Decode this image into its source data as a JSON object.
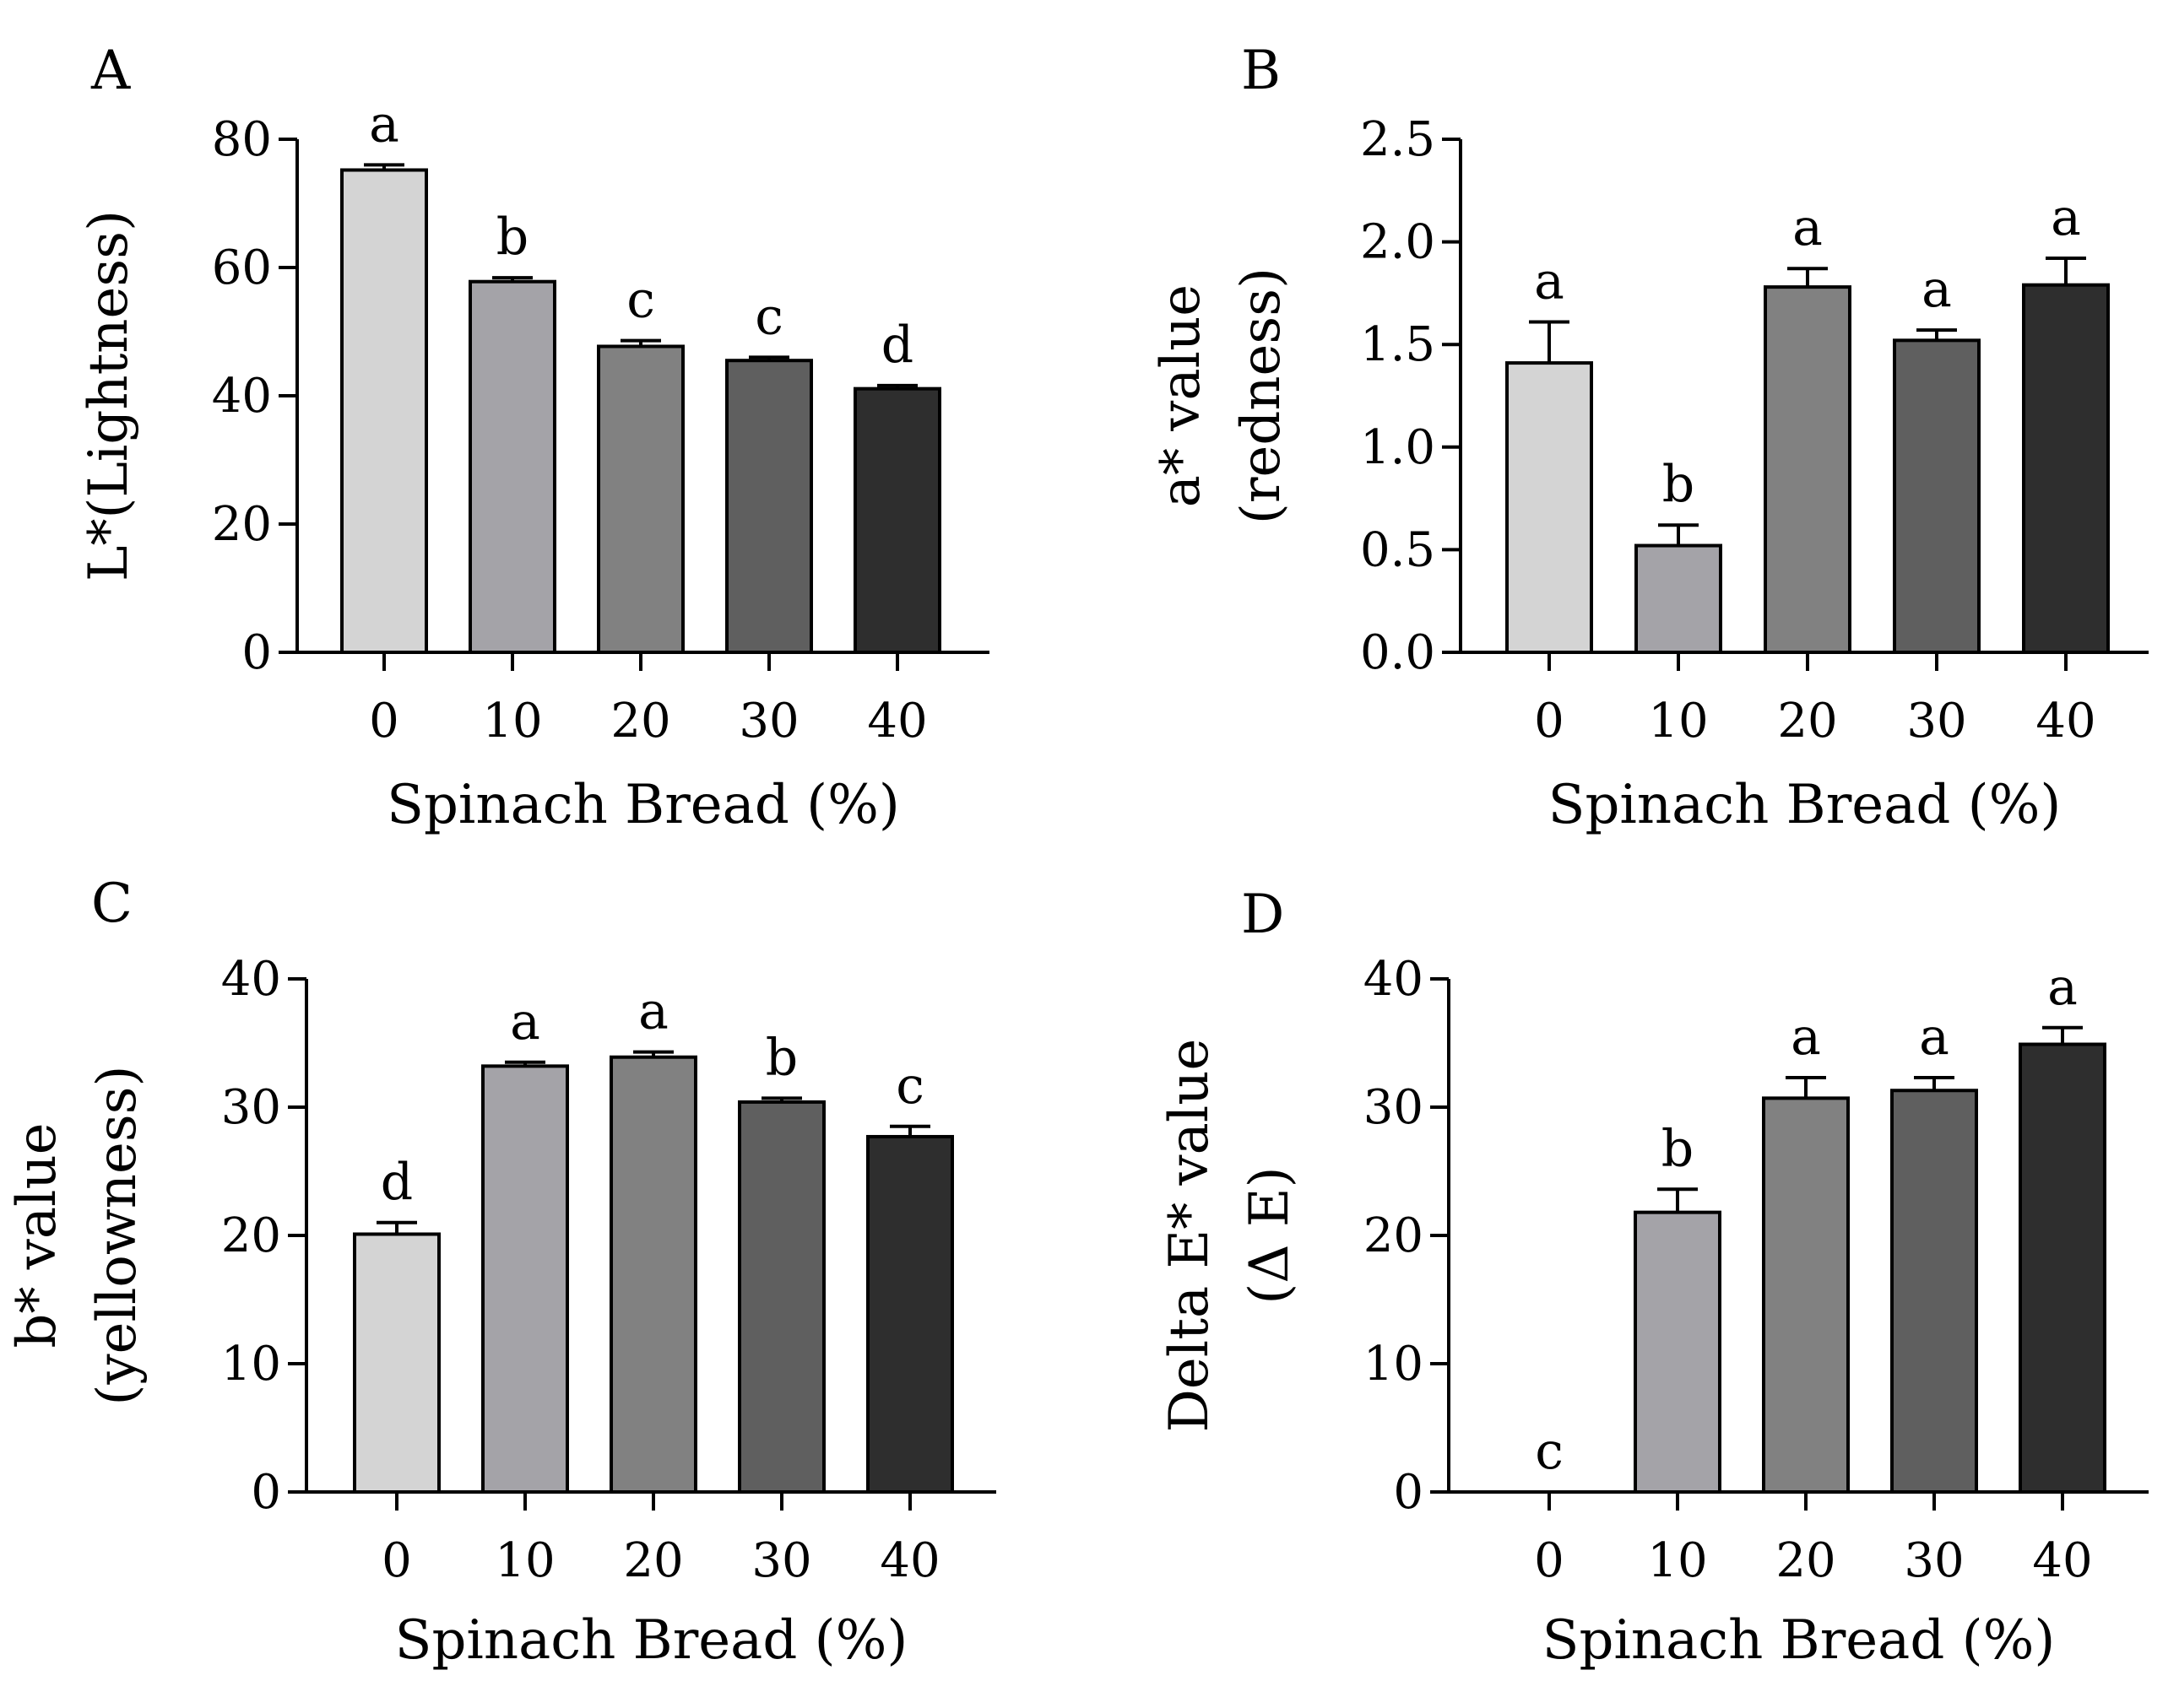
{
  "figure": {
    "bar_colors": [
      "#d4d4d4",
      "#a4a3a8",
      "#818181",
      "#5f5f5f",
      "#2e2e2e"
    ]
  },
  "chart_data": [
    {
      "panel": "A",
      "type": "bar",
      "categories": [
        "0",
        "10",
        "20",
        "30",
        "40"
      ],
      "values": [
        75.2,
        57.8,
        47.7,
        45.5,
        41.1
      ],
      "errors": [
        0.8,
        0.6,
        0.9,
        0.5,
        0.5
      ],
      "significance": [
        "a",
        "b",
        "c",
        "c",
        "d"
      ],
      "xlabel": "Spinach Bread (%)",
      "ylabel": [
        "L*(Lightness)"
      ],
      "ylim": [
        0,
        80
      ],
      "yticks": [
        0,
        20,
        40,
        60,
        80
      ],
      "ytick_labels": [
        "0",
        "20",
        "40",
        "60",
        "80"
      ]
    },
    {
      "panel": "B",
      "type": "bar",
      "categories": [
        "0",
        "10",
        "20",
        "30",
        "40"
      ],
      "values": [
        1.41,
        0.52,
        1.78,
        1.52,
        1.79
      ],
      "errors": [
        0.2,
        0.1,
        0.09,
        0.05,
        0.13
      ],
      "significance": [
        "a",
        "b",
        "a",
        "a",
        "a"
      ],
      "xlabel": "Spinach Bread (%)",
      "ylabel": [
        "a* value",
        "(redness)"
      ],
      "ylim": [
        0,
        2.5
      ],
      "yticks": [
        0,
        0.5,
        1.0,
        1.5,
        2.0,
        2.5
      ],
      "ytick_labels": [
        "0.0",
        "0.5",
        "1.0",
        "1.5",
        "2.0",
        "2.5"
      ]
    },
    {
      "panel": "C",
      "type": "bar",
      "categories": [
        "0",
        "10",
        "20",
        "30",
        "40"
      ],
      "values": [
        20.1,
        33.2,
        33.9,
        30.4,
        27.7
      ],
      "errors": [
        0.9,
        0.3,
        0.4,
        0.3,
        0.8
      ],
      "significance": [
        "d",
        "a",
        "a",
        "b",
        "c"
      ],
      "xlabel": "Spinach Bread (%)",
      "ylabel": [
        "b* value",
        "(yellowness)"
      ],
      "ylim": [
        0,
        40
      ],
      "yticks": [
        0,
        10,
        20,
        30,
        40
      ],
      "ytick_labels": [
        "0",
        "10",
        "20",
        "30",
        "40"
      ]
    },
    {
      "panel": "D",
      "type": "bar",
      "categories": [
        "0",
        "10",
        "20",
        "30",
        "40"
      ],
      "values": [
        0,
        21.8,
        30.7,
        31.3,
        34.9
      ],
      "errors": [
        0,
        1.8,
        1.6,
        1.0,
        1.3
      ],
      "significance": [
        "c",
        "b",
        "a",
        "a",
        "a"
      ],
      "xlabel": "Spinach Bread (%)",
      "ylabel": [
        "Delta E* value",
        "(Δ E)"
      ],
      "ylim": [
        0,
        40
      ],
      "yticks": [
        0,
        10,
        20,
        30,
        40
      ],
      "ytick_labels": [
        "0",
        "10",
        "20",
        "30",
        "40"
      ]
    }
  ]
}
